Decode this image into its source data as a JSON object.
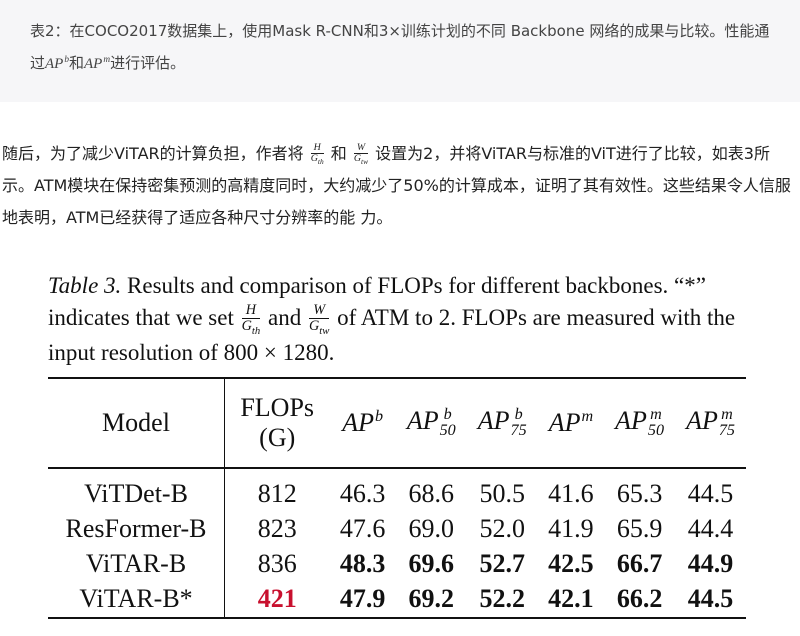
{
  "caption": [
    "表2：在COCO2017数据集上，使用Mask R-CNN和3×训练计划的不同 Backbone 网络的成果与比较。性能通过",
    {
      "base": "AP",
      "sup": "b"
    },
    "和",
    {
      "base": "AP",
      "sup": "m"
    },
    "进行评估。"
  ],
  "paragraph": [
    "随后，为了减少ViTAR的计算负担，作者将 ",
    {
      "num": "H",
      "den": "G",
      "sub": "th"
    },
    " 和 ",
    {
      "num": "W",
      "den": "G",
      "sub": "tw"
    },
    " 设置为2，并将ViTAR与标准的ViT进行了比较，如表3所示。ATM模块在保持密集预测的高精度同时，大约减少了50%的计算成本，证明了其有效性。这些结果令人信服地表明，ATM已经获得了适应各种尺寸分辨率的能 力。"
  ],
  "table3": {
    "caption": [
      {
        "italic": "Table 3."
      },
      " Results and comparison of FLOPs for different backbones. “*” indicates that we set ",
      {
        "num": "H",
        "den": "G",
        "sub": "th"
      },
      " and ",
      {
        "num": "W",
        "den": "G",
        "sub": "tw"
      },
      " of ATM to 2. FLOPs are measured with the input resolution of 800 × 1280."
    ],
    "header": [
      "Model",
      {
        "lines": [
          "FLOPs",
          "(G)"
        ]
      },
      {
        "base": "AP",
        "sup": "b"
      },
      {
        "base": "AP",
        "sup": "b",
        "sub": "50"
      },
      {
        "base": "AP",
        "sup": "b",
        "sub": "75"
      },
      {
        "base": "AP",
        "sup": "m"
      },
      {
        "base": "AP",
        "sup": "m",
        "sub": "50"
      },
      {
        "base": "AP",
        "sup": "m",
        "sub": "75"
      }
    ],
    "rows": [
      {
        "cells": [
          "ViTDet-B",
          "812",
          "46.3",
          "68.6",
          "50.5",
          "41.6",
          "65.3",
          "44.5"
        ],
        "style": [
          "normal",
          "normal",
          "normal",
          "normal",
          "normal",
          "normal",
          "normal",
          "normal"
        ]
      },
      {
        "cells": [
          "ResFormer-B",
          "823",
          "47.6",
          "69.0",
          "52.0",
          "41.9",
          "65.9",
          "44.4"
        ],
        "style": [
          "normal",
          "normal",
          "normal",
          "normal",
          "normal",
          "normal",
          "normal",
          "normal"
        ]
      },
      {
        "cells": [
          "ViTAR-B",
          "836",
          "48.3",
          "69.6",
          "52.7",
          "42.5",
          "66.7",
          "44.9"
        ],
        "style": [
          "normal",
          "normal",
          "bold",
          "bold",
          "bold",
          "bold",
          "bold",
          "bold"
        ]
      },
      {
        "cells": [
          "ViTAR-B*",
          "421",
          "47.9",
          "69.2",
          "52.2",
          "42.1",
          "66.2",
          "44.5"
        ],
        "style": [
          "normal",
          "red",
          "bold",
          "bold",
          "bold",
          "bold",
          "bold",
          "bold"
        ]
      }
    ]
  }
}
